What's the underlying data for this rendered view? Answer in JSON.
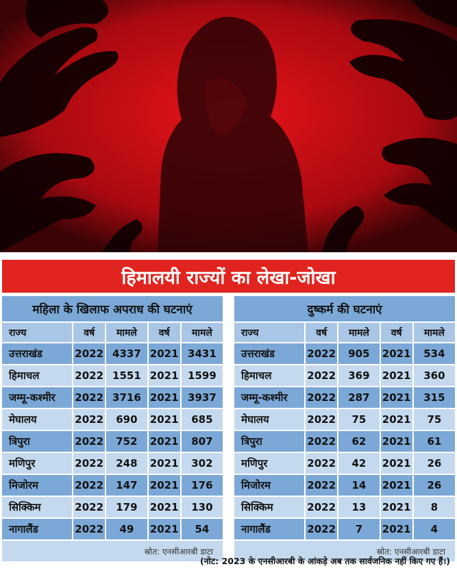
{
  "banner_title": "हिमालयी राज्यों का लेखा-जोखा",
  "left_table": {
    "title": "महिला के खिलाफ अपराध की घटनाएं",
    "headers": [
      "राज्य",
      "वर्ष",
      "मामले",
      "वर्ष",
      "मामले"
    ],
    "rows": [
      [
        "उत्तराखंड",
        "2022",
        "4337",
        "2021",
        "3431"
      ],
      [
        "हिमाचल",
        "2022",
        "1551",
        "2021",
        "1599"
      ],
      [
        "जम्मू-कश्मीर",
        "2022",
        "3716",
        "2021",
        "3937"
      ],
      [
        "मेघालय",
        "2022",
        "690",
        "2021",
        "685"
      ],
      [
        "त्रिपुरा",
        "2022",
        "752",
        "2021",
        "807"
      ],
      [
        "मणिपुर",
        "2022",
        "248",
        "2021",
        "302"
      ],
      [
        "मिजोरम",
        "2022",
        "147",
        "2021",
        "176"
      ],
      [
        "सिक्किम",
        "2022",
        "179",
        "2021",
        "130"
      ],
      [
        "नागालैंड",
        "2022",
        "49",
        "2021",
        "54"
      ]
    ],
    "source": "स्रोत: एनसीआरबी डाटा"
  },
  "right_table": {
    "title": "दुष्कर्म की घटनाएं",
    "headers": [
      "राज्य",
      "वर्ष",
      "मामले",
      "वर्ष",
      "मामले"
    ],
    "rows": [
      [
        "उत्तराखंड",
        "2022",
        "905",
        "2021",
        "534"
      ],
      [
        "हिमाचल",
        "2022",
        "369",
        "2021",
        "360"
      ],
      [
        "जम्मू-कश्मीर",
        "2022",
        "287",
        "2021",
        "315"
      ],
      [
        "मेघालय",
        "2022",
        "75",
        "2021",
        "75"
      ],
      [
        "त्रिपुरा",
        "2022",
        "62",
        "2021",
        "61"
      ],
      [
        "मणिपुर",
        "2022",
        "42",
        "2021",
        "26"
      ],
      [
        "मिजोरम",
        "2022",
        "14",
        "2021",
        "26"
      ],
      [
        "सिक्किम",
        "2022",
        "13",
        "2021",
        "8"
      ],
      [
        "नागालैंड",
        "2022",
        "7",
        "2021",
        "4"
      ]
    ],
    "source": "स्रोत: एनसीआरबी डाटा"
  },
  "footnote": "(नोट: 2023 के एनसीआरबी के आंकड़े अब तक सार्वजनिक नहीं किए गए हैं।)"
}
